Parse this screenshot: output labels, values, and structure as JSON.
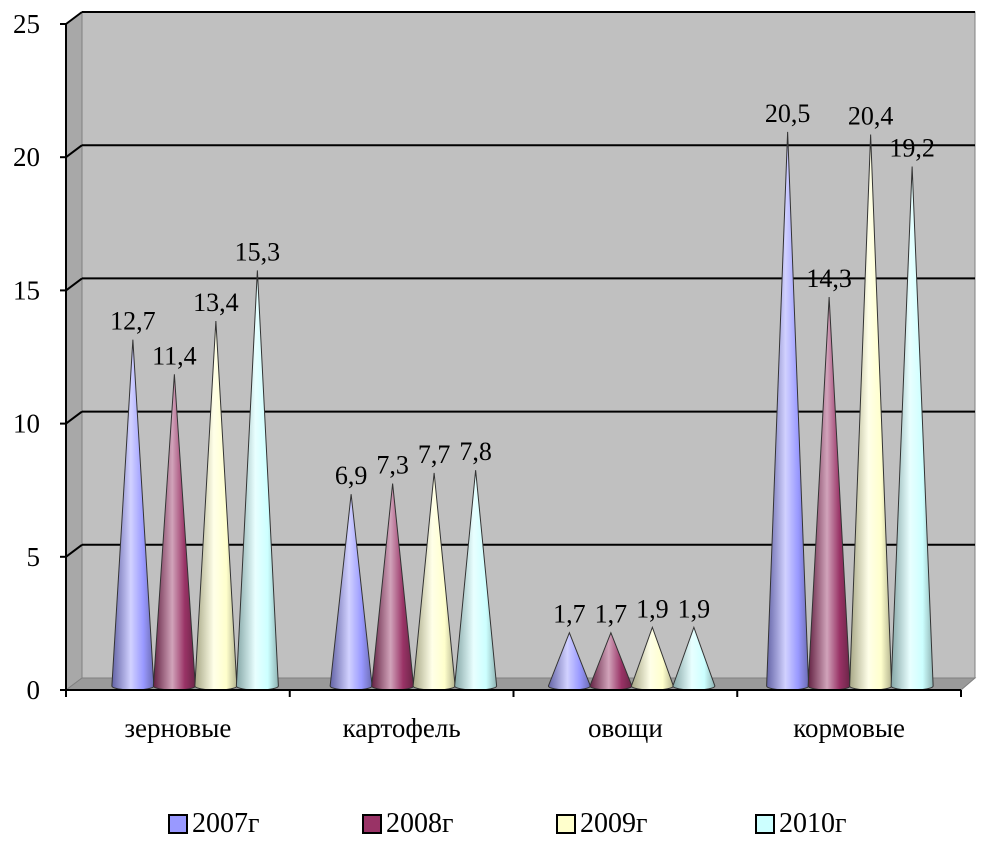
{
  "chart_data": {
    "type": "bar",
    "bar_shape": "cone",
    "categories": [
      "зерновые",
      "картофель",
      "овощи",
      "кормовые"
    ],
    "series": [
      {
        "name": "2007г",
        "values": [
          12.7,
          6.9,
          1.7,
          20.5
        ],
        "labels": [
          "12,7",
          "6,9",
          "1,7",
          "20,5"
        ],
        "color": "#9999ff"
      },
      {
        "name": "2008г",
        "values": [
          11.4,
          7.3,
          1.7,
          14.3
        ],
        "labels": [
          "11,4",
          "7,3",
          "1,7",
          "14,3"
        ],
        "color": "#993366"
      },
      {
        "name": "2009г",
        "values": [
          13.4,
          7.7,
          1.9,
          20.4
        ],
        "labels": [
          "13,4",
          "7,7",
          "1,9",
          "20,4"
        ],
        "color": "#ffffcc"
      },
      {
        "name": "2010г",
        "values": [
          15.3,
          7.8,
          1.9,
          19.2
        ],
        "labels": [
          "15,3",
          "7,8",
          "1,9",
          "19,2"
        ],
        "color": "#ccffff"
      }
    ],
    "yticks": [
      "0",
      "5",
      "10",
      "15",
      "20",
      "25"
    ],
    "ylim": [
      0,
      25
    ],
    "grid": true,
    "legend_position": "bottom",
    "background_color": "#c0c0c0"
  }
}
